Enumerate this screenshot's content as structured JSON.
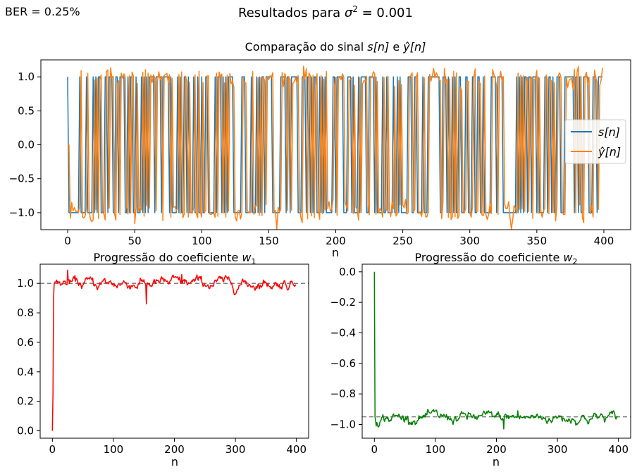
{
  "figure": {
    "ber_label": "BER = 0.25%",
    "suptitle_prefix": "Resultados para ",
    "suptitle_math": "σ",
    "suptitle_sup": "2",
    "suptitle_suffix": " = 0.001"
  },
  "chart_data": [
    {
      "type": "line",
      "title_prefix": "Comparação do sinal ",
      "title_s": "s[n]",
      "title_mid": " e ",
      "title_y": "ŷ[n]",
      "xlabel": "n",
      "ylabel": "",
      "xlim": [
        -20,
        420
      ],
      "ylim": [
        -1.25,
        1.25
      ],
      "xticks": [
        0,
        50,
        100,
        150,
        200,
        250,
        300,
        350,
        400
      ],
      "yticks": [
        -1.0,
        -0.5,
        0.0,
        0.5,
        1.0
      ],
      "grid": false,
      "legend_position": "center-right",
      "n_samples": 400,
      "series": [
        {
          "name": "s[n]",
          "color": "#1f77b4",
          "description": "binary ±1 symbol sequence"
        },
        {
          "name": "ŷ[n]",
          "color": "#ff7f0e",
          "description": "equalizer output, starts at 0 for first 2 samples"
        }
      ]
    },
    {
      "type": "line",
      "title_prefix": "Progressão do coeficiente ",
      "title_var": "w",
      "title_sub": "1",
      "xlabel": "n",
      "xlim": [
        -20,
        420
      ],
      "ylim": [
        -0.05,
        1.13
      ],
      "xticks": [
        0,
        100,
        200,
        300,
        400
      ],
      "yticks": [
        0.0,
        0.2,
        0.4,
        0.6,
        0.8,
        1.0
      ],
      "grid": false,
      "reference_line": 1.0,
      "series": [
        {
          "name": "w1",
          "color": "#ff0000",
          "start": 0.0,
          "settle": 1.0
        }
      ]
    },
    {
      "type": "line",
      "title_prefix": "Progressão do coeficiente ",
      "title_var": "w",
      "title_sub": "2",
      "xlabel": "n",
      "xlim": [
        -20,
        420
      ],
      "ylim": [
        -1.09,
        0.05
      ],
      "xticks": [
        0,
        100,
        200,
        300,
        400
      ],
      "yticks": [
        -1.0,
        -0.8,
        -0.6,
        -0.4,
        -0.2,
        0.0
      ],
      "grid": false,
      "reference_line": -0.95,
      "series": [
        {
          "name": "w2",
          "color": "#008000",
          "start": 0.0,
          "settle": -0.95
        }
      ]
    }
  ]
}
